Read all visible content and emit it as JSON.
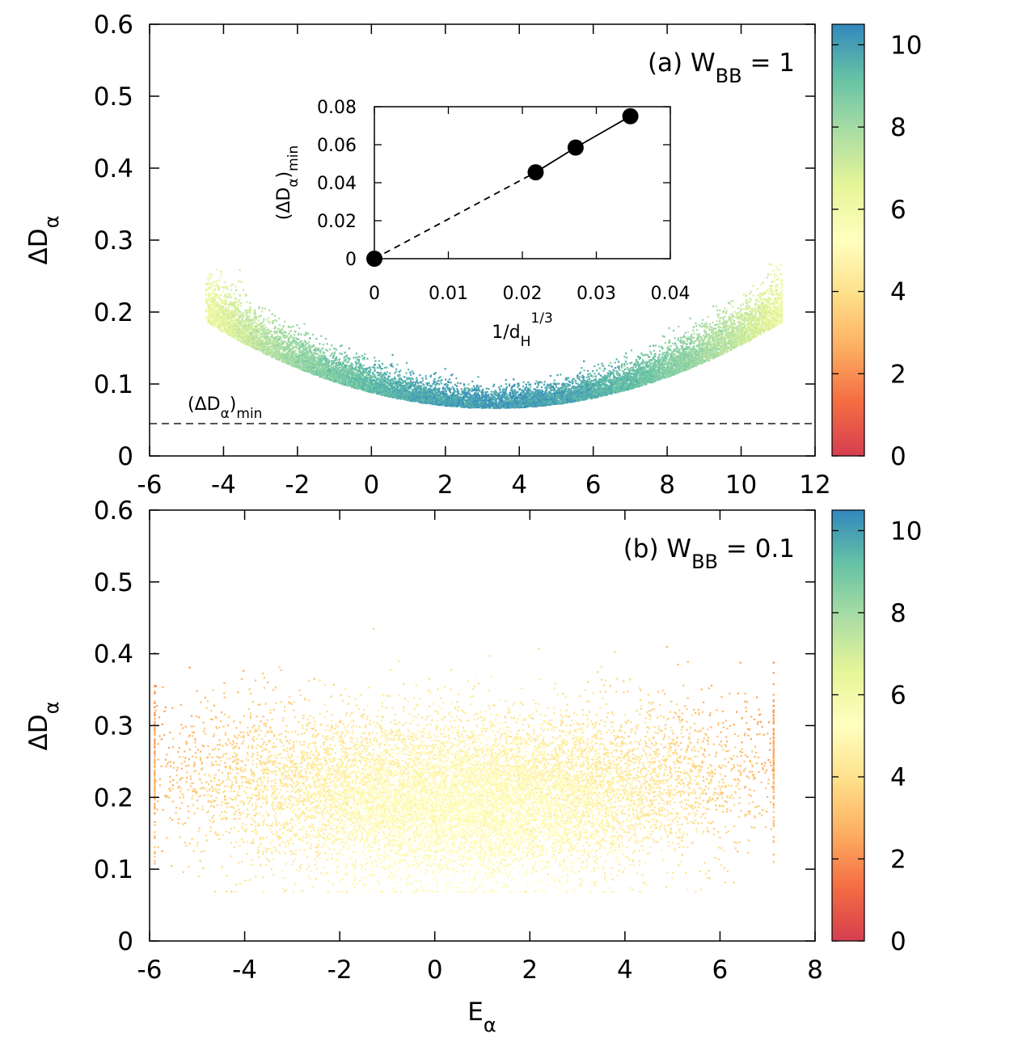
{
  "chart_data": [
    {
      "type": "scatter",
      "panel_label": "(a) W",
      "panel_label_sub": "BB",
      "panel_label_value": " = 1",
      "xlim": [
        -6,
        12
      ],
      "ylim": [
        0,
        0.6
      ],
      "x_ticks": [
        -6,
        -4,
        -2,
        0,
        2,
        4,
        6,
        8,
        10,
        12
      ],
      "x_tick_labels": [
        "-6",
        "-4",
        "-2",
        "0",
        "2",
        "4",
        "6",
        "8",
        "10",
        "12"
      ],
      "y_ticks": [
        0,
        0.1,
        0.2,
        0.3,
        0.4,
        0.5,
        0.6
      ],
      "y_tick_labels": [
        "0",
        "0.1",
        "0.2",
        "0.3",
        "0.4",
        "0.5",
        "0.6"
      ],
      "ylabel": "ΔD",
      "ylabel_sub": "α",
      "reference_line": {
        "y": 0.045,
        "label": "(ΔD",
        "label_sub": "α",
        "label_tail": ")",
        "label_tail_sub": "min"
      },
      "point_cloud": {
        "center_x": 3.3,
        "x_half_width": 7.8,
        "y_min_center": 0.085,
        "y_curvature": 0.12,
        "y_spread": 0.022,
        "color_value_center": 10,
        "n_points": 12000
      },
      "colorbar": {
        "range": [
          0,
          10.5
        ],
        "ticks": [
          0,
          2,
          4,
          6,
          8,
          10
        ],
        "tick_labels": [
          "0",
          "2",
          "4",
          "6",
          "8",
          "10"
        ]
      },
      "inset": {
        "type": "line",
        "x": [
          0,
          0.0218,
          0.0272,
          0.0346
        ],
        "y": [
          0,
          0.0455,
          0.0585,
          0.075
        ],
        "dashed_segment": [
          0,
          1
        ],
        "solid_segment": [
          1,
          3
        ],
        "xlim": [
          0,
          0.04
        ],
        "ylim": [
          0,
          0.08
        ],
        "x_ticks": [
          0,
          0.01,
          0.02,
          0.03,
          0.04
        ],
        "x_tick_labels": [
          "0",
          "0.01",
          "0.02",
          "0.03",
          "0.04"
        ],
        "y_ticks": [
          0,
          0.02,
          0.04,
          0.06,
          0.08
        ],
        "y_tick_labels": [
          "0",
          "0.02",
          "0.04",
          "0.06",
          "0.08"
        ],
        "xlabel": "1/d",
        "xlabel_sub": "H",
        "xlabel_sup": "1/3",
        "ylabel": "(ΔD",
        "ylabel_sub": "α",
        "ylabel_tail": ")",
        "ylabel_tail_sub": "min"
      }
    },
    {
      "type": "scatter",
      "panel_label": "(b) W",
      "panel_label_sub": "BB",
      "panel_label_value": " = 0.1",
      "xlim": [
        -6,
        8
      ],
      "ylim": [
        0,
        0.6
      ],
      "x_ticks": [
        -6,
        -4,
        -2,
        0,
        2,
        4,
        6,
        8
      ],
      "x_tick_labels": [
        "-6",
        "-4",
        "-2",
        "0",
        "2",
        "4",
        "6",
        "8"
      ],
      "y_ticks": [
        0,
        0.1,
        0.2,
        0.3,
        0.4,
        0.5,
        0.6
      ],
      "y_tick_labels": [
        "0",
        "0.1",
        "0.2",
        "0.3",
        "0.4",
        "0.5",
        "0.6"
      ],
      "xlabel": "E",
      "xlabel_sub": "α",
      "ylabel": "ΔD",
      "ylabel_sub": "α",
      "point_cloud": {
        "center_x": 0.6,
        "x_half_width": 6.2,
        "y_center": 0.2,
        "y_spread": 0.055,
        "color_value_center": 5.2,
        "n_points": 12000
      },
      "colorbar": {
        "range": [
          0,
          10.5
        ],
        "ticks": [
          0,
          2,
          4,
          6,
          8,
          10
        ],
        "tick_labels": [
          "0",
          "2",
          "4",
          "6",
          "8",
          "10"
        ]
      }
    }
  ],
  "colormap": [
    "#d53e4f",
    "#f46d43",
    "#fdae61",
    "#fee08b",
    "#ffffbf",
    "#e6f598",
    "#abdda4",
    "#66c2a5",
    "#3288bd"
  ]
}
